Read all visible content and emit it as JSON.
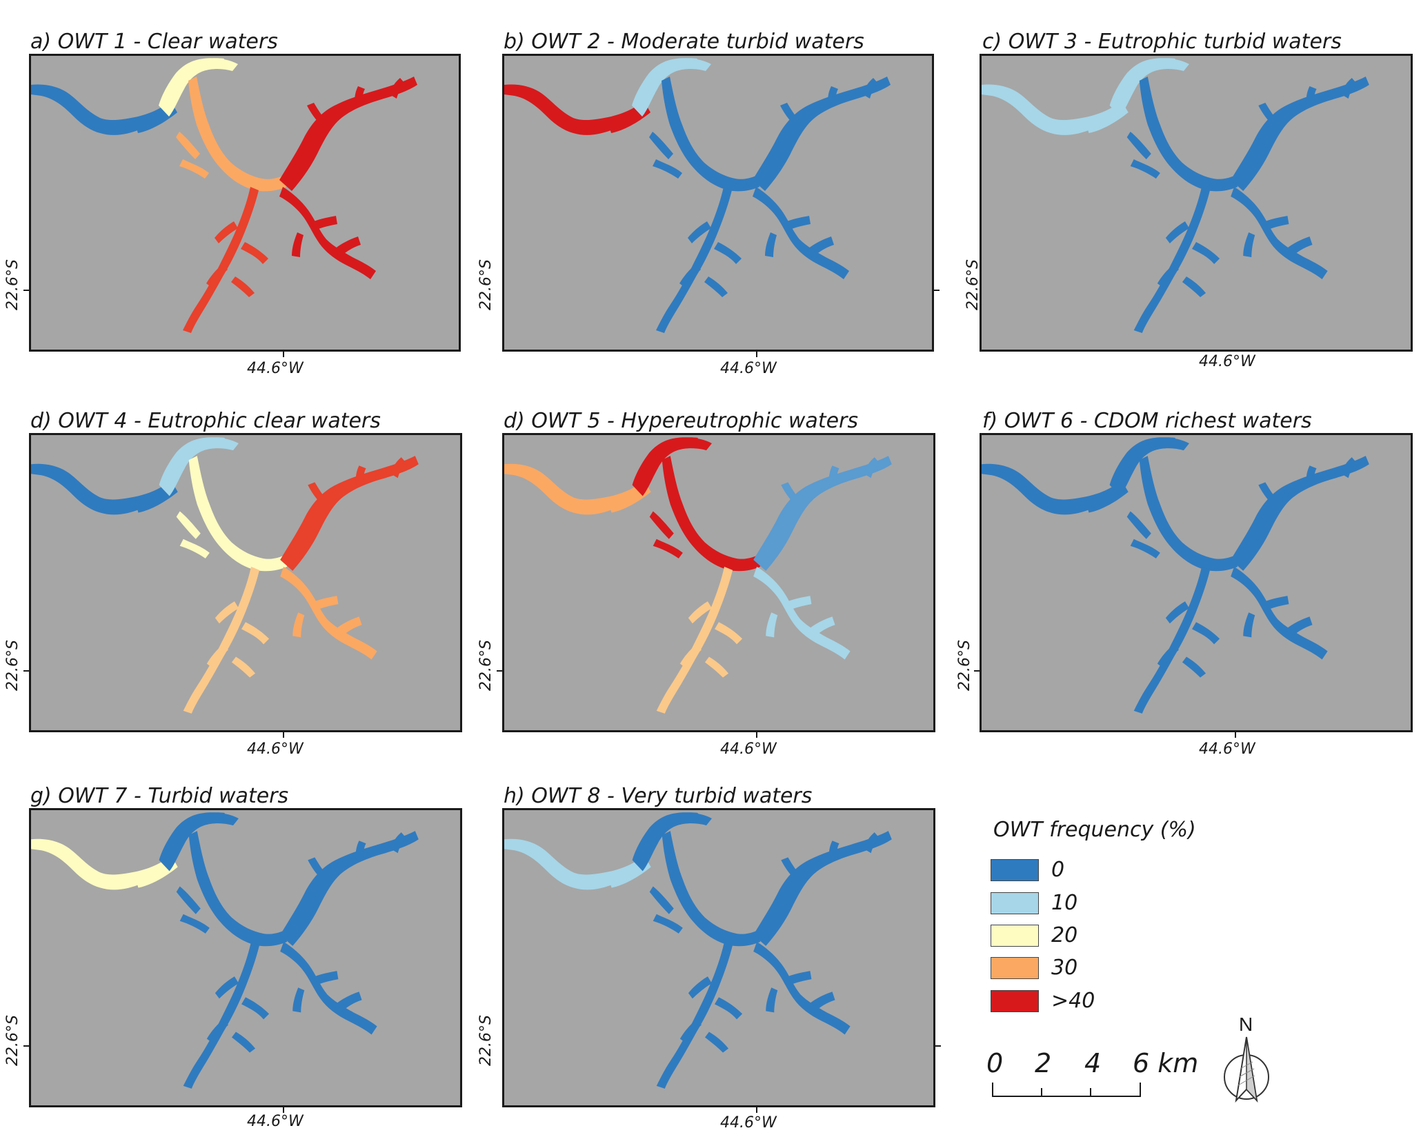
{
  "panels": [
    {
      "title": "a) OWT 1 - Clear waters",
      "lat_label": "22.6°S",
      "lon_label": "44.6°W",
      "frequency": {
        "west_arm": "0",
        "north_bay": "10-20",
        "central": "30",
        "east_arm": ">40",
        "south_arm": ">40"
      }
    },
    {
      "title": "b) OWT 2 - Moderate turbid waters",
      "lat_label": "22.6°S",
      "lon_label": "44.6°W",
      "frequency": {
        "west_arm": ">40",
        "north_bay": "10",
        "central": "0",
        "east_arm": "0",
        "south_arm": "0"
      }
    },
    {
      "title": "c) OWT 3 - Eutrophic turbid waters",
      "lat_label": "22.6°S",
      "lon_label": "44.6°W",
      "frequency": {
        "west_arm": "10",
        "north_bay": "10",
        "central": "0",
        "east_arm": "0",
        "south_arm": "0"
      }
    },
    {
      "title": "d) OWT 4 - Eutrophic clear waters",
      "lat_label": "22.6°S",
      "lon_label": "44.6°W",
      "frequency": {
        "west_arm": "0-10",
        "north_bay": "10-20",
        "central": "20-30",
        "east_arm": "30->40",
        "south_arm": "20-30"
      }
    },
    {
      "title": "d) OWT 5 - Hypereutrophic waters",
      "lat_label": "22.6°S",
      "lon_label": "44.6°W",
      "frequency": {
        "west_arm": "30",
        "north_bay": ">40",
        "central": ">40",
        "east_arm": "0-10",
        "south_arm": "20-30"
      }
    },
    {
      "title": "f) OWT 6 - CDOM richest waters",
      "lat_label": "22.6°S",
      "lon_label": "44.6°W",
      "frequency": {
        "west_arm": "0",
        "north_bay": "0",
        "central": "0",
        "east_arm": "0",
        "south_arm": "0"
      }
    },
    {
      "title": "g) OWT 7 - Turbid waters",
      "lat_label": "22.6°S",
      "lon_label": "44.6°W",
      "frequency": {
        "west_arm": "10-30",
        "north_bay": "0",
        "central": "0",
        "east_arm": "0",
        "south_arm": "0"
      }
    },
    {
      "title": "h) OWT 8 - Very turbid waters",
      "lat_label": "22.6°S",
      "lon_label": "44.6°W",
      "frequency": {
        "west_arm": "10",
        "north_bay": "0",
        "central": "0",
        "east_arm": "0",
        "south_arm": "0"
      }
    }
  ],
  "legend": {
    "title": "OWT frequency (%)",
    "items": [
      {
        "label": "0",
        "color": "#2f7bbf"
      },
      {
        "label": "10",
        "color": "#a6d6e8"
      },
      {
        "label": "20",
        "color": "#fefcc1"
      },
      {
        "label": "30",
        "color": "#fba862"
      },
      {
        "label": ">40",
        "color": "#d7191c"
      }
    ]
  },
  "scale_bar": {
    "labels": [
      "0",
      "2",
      "4",
      "6 km"
    ]
  },
  "north_arrow": {
    "label": "N"
  },
  "colors": {
    "land": "#a6a6a6",
    "frame": "#1a1a1a"
  }
}
